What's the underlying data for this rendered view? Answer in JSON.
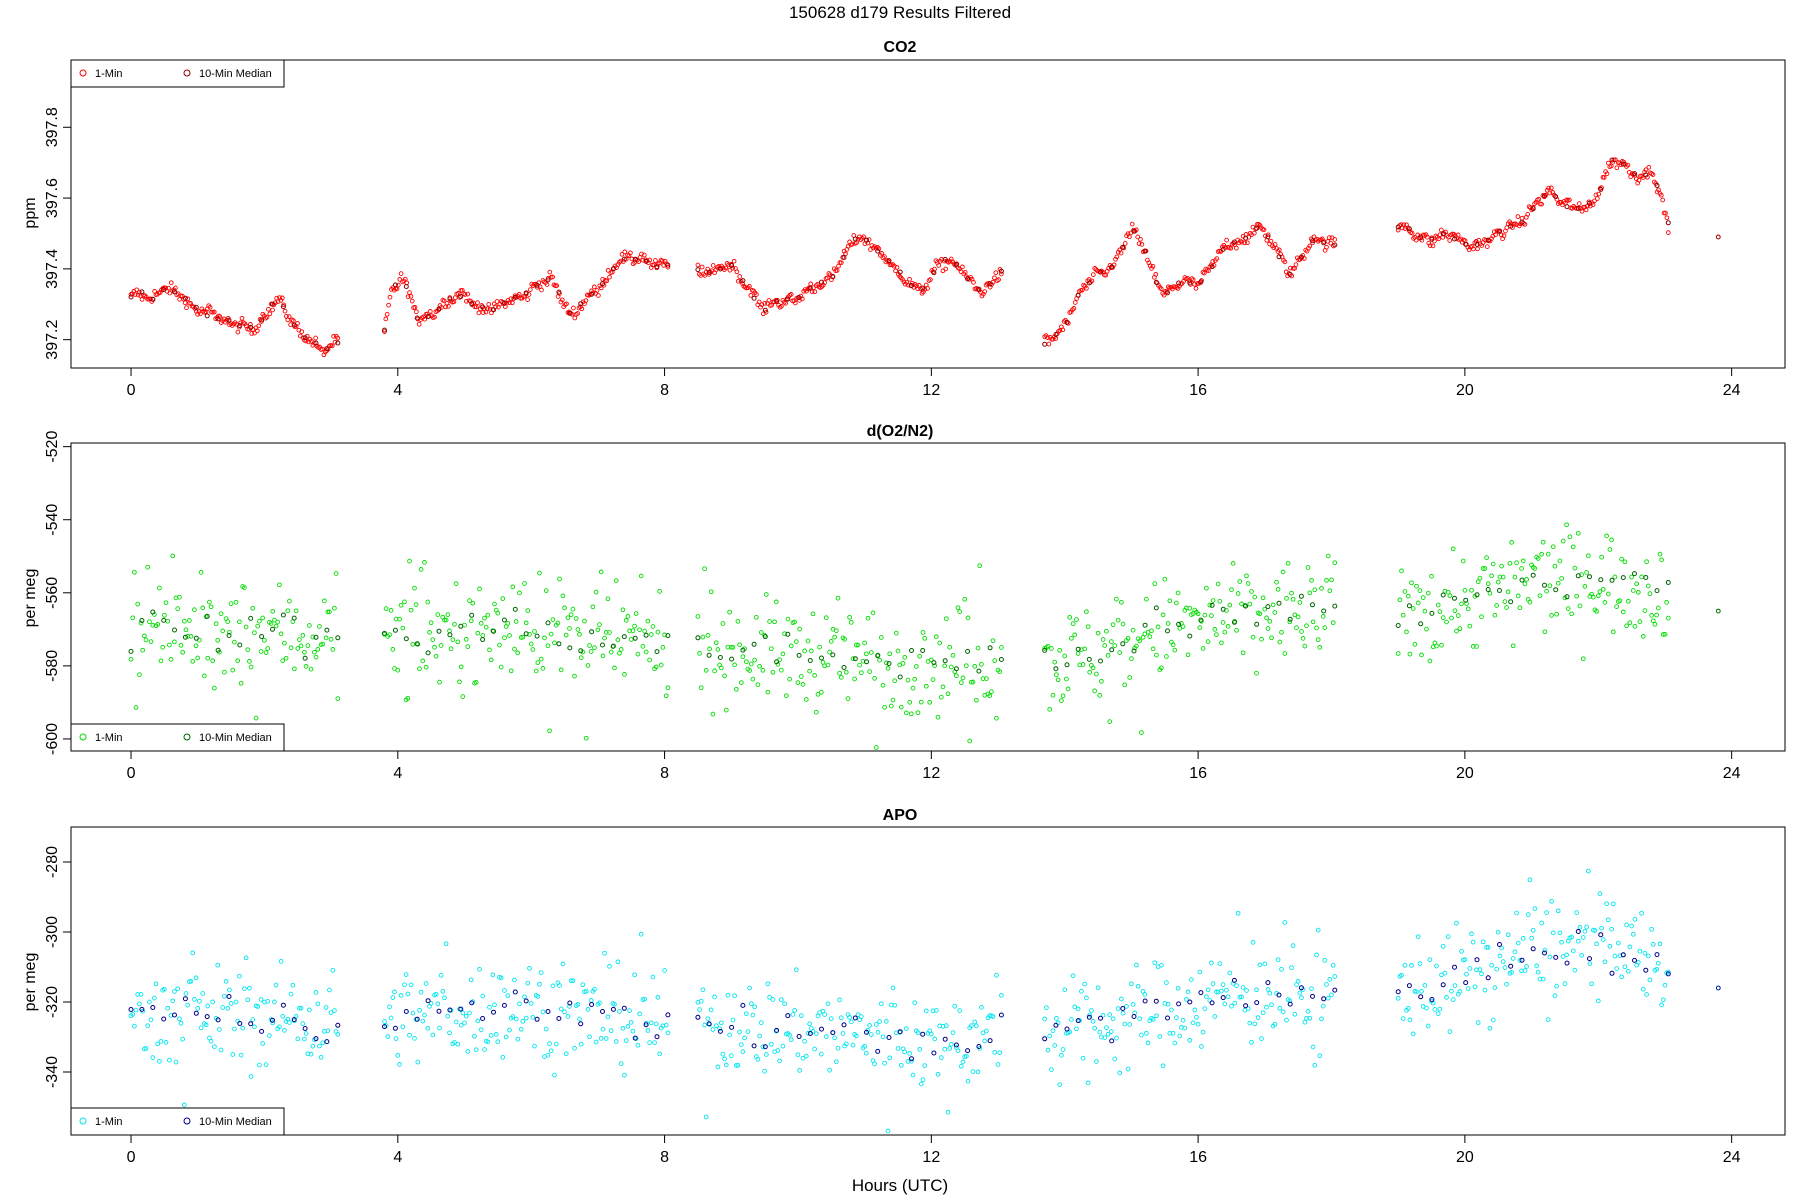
{
  "figure": {
    "title": "150628   d179   Results Filtered"
  },
  "chart_data": [
    {
      "type": "scatter",
      "title": "CO2",
      "xlabel": "",
      "ylabel": "ppm",
      "xlim": [
        -0.9,
        24.8
      ],
      "ylim": [
        397.12,
        397.99
      ],
      "xticks": [
        0,
        4,
        8,
        12,
        16,
        20,
        24
      ],
      "yticks": [
        397.2,
        397.4,
        397.6,
        397.8
      ],
      "ytick_labels": [
        "397.2",
        "397.4",
        "397.6",
        "397.8"
      ],
      "legend": {
        "placement": "top-left",
        "entries": [
          "1-Min",
          "10-Min Median"
        ]
      },
      "colors": {
        "one_min": "#ff0000",
        "median": "#8b0000"
      },
      "series": [
        {
          "name": "1-Min",
          "segments": [
            [
              0.0,
              3.1
            ],
            [
              3.8,
              8.05
            ],
            [
              8.5,
              13.05
            ],
            [
              13.7,
              18.05
            ],
            [
              19.0,
              23.05
            ],
            [
              23.8,
              23.82
            ]
          ],
          "kind": "wavy",
          "noise": 0.008,
          "anchors": [
            [
              0.0,
              397.32
            ],
            [
              0.3,
              397.31
            ],
            [
              0.5,
              397.36
            ],
            [
              0.7,
              397.33
            ],
            [
              0.9,
              397.28
            ],
            [
              1.2,
              397.29
            ],
            [
              1.5,
              397.23
            ],
            [
              1.8,
              397.24
            ],
            [
              2.0,
              397.27
            ],
            [
              2.2,
              397.3
            ],
            [
              2.5,
              397.24
            ],
            [
              2.7,
              397.2
            ],
            [
              2.85,
              397.15
            ],
            [
              3.1,
              397.2
            ],
            [
              3.8,
              397.23
            ],
            [
              3.9,
              397.34
            ],
            [
              4.05,
              397.38
            ],
            [
              4.3,
              397.25
            ],
            [
              4.6,
              397.3
            ],
            [
              5.0,
              397.32
            ],
            [
              5.5,
              397.28
            ],
            [
              6.0,
              397.35
            ],
            [
              6.3,
              397.36
            ],
            [
              6.6,
              397.28
            ],
            [
              7.0,
              397.33
            ],
            [
              7.3,
              397.44
            ],
            [
              7.5,
              397.42
            ],
            [
              8.05,
              397.42
            ],
            [
              8.5,
              397.4
            ],
            [
              9.0,
              397.4
            ],
            [
              9.3,
              397.35
            ],
            [
              9.5,
              397.28
            ],
            [
              10.0,
              397.33
            ],
            [
              10.4,
              397.35
            ],
            [
              10.8,
              397.48
            ],
            [
              11.2,
              397.46
            ],
            [
              11.4,
              397.42
            ],
            [
              11.6,
              397.36
            ],
            [
              11.8,
              397.33
            ],
            [
              12.1,
              397.42
            ],
            [
              12.4,
              397.4
            ],
            [
              12.8,
              397.34
            ],
            [
              13.05,
              397.38
            ],
            [
              13.7,
              397.18
            ],
            [
              13.9,
              397.22
            ],
            [
              14.2,
              397.32
            ],
            [
              14.5,
              397.38
            ],
            [
              14.8,
              397.44
            ],
            [
              15.0,
              397.5
            ],
            [
              15.2,
              397.45
            ],
            [
              15.5,
              397.33
            ],
            [
              16.0,
              397.37
            ],
            [
              16.5,
              397.47
            ],
            [
              16.9,
              397.52
            ],
            [
              17.2,
              397.44
            ],
            [
              17.4,
              397.4
            ],
            [
              17.7,
              397.47
            ],
            [
              18.05,
              397.48
            ],
            [
              19.0,
              397.51
            ],
            [
              19.5,
              397.49
            ],
            [
              20.0,
              397.48
            ],
            [
              20.4,
              397.47
            ],
            [
              20.7,
              397.53
            ],
            [
              21.0,
              397.56
            ],
            [
              21.3,
              397.62
            ],
            [
              21.6,
              397.58
            ],
            [
              21.8,
              397.55
            ],
            [
              22.0,
              397.62
            ],
            [
              22.2,
              397.72
            ],
            [
              22.4,
              397.68
            ],
            [
              22.6,
              397.65
            ],
            [
              22.8,
              397.7
            ],
            [
              23.05,
              397.52
            ],
            [
              23.8,
              397.49
            ]
          ]
        },
        {
          "name": "10-Min Median",
          "segments": [
            [
              0.0,
              3.1
            ],
            [
              3.8,
              8.05
            ],
            [
              8.5,
              13.05
            ],
            [
              13.7,
              18.05
            ],
            [
              19.0,
              23.05
            ]
          ],
          "kind": "median",
          "noise": 0.004,
          "anchors": []
        }
      ]
    },
    {
      "type": "scatter",
      "title": "d(O2/N2)",
      "xlabel": "",
      "ylabel": "per meg",
      "xlim": [
        -0.9,
        24.8
      ],
      "ylim": [
        -603.3,
        -519
      ],
      "xticks": [
        0,
        4,
        8,
        12,
        16,
        20,
        24
      ],
      "yticks": [
        -600,
        -580,
        -560,
        -540,
        -520
      ],
      "ytick_labels": [
        "-600",
        "-580",
        "-560",
        "-540",
        "-520"
      ],
      "legend": {
        "placement": "bottom-left",
        "entries": [
          "1-Min",
          "10-Min Median"
        ]
      },
      "colors": {
        "one_min": "#00dd00",
        "median": "#006400"
      },
      "series": [
        {
          "name": "1-Min",
          "segments": [
            [
              0.0,
              3.1
            ],
            [
              3.8,
              8.05
            ],
            [
              8.5,
              13.05
            ],
            [
              13.7,
              18.05
            ],
            [
              19.0,
              23.05
            ],
            [
              23.8,
              23.82
            ]
          ],
          "kind": "scatter",
          "noise": 7,
          "anchors": [
            [
              0.0,
              -570
            ],
            [
              1.0,
              -571
            ],
            [
              2.0,
              -571
            ],
            [
              3.1,
              -572
            ],
            [
              3.8,
              -572
            ],
            [
              5.0,
              -571
            ],
            [
              6.0,
              -569
            ],
            [
              7.0,
              -573
            ],
            [
              8.05,
              -574
            ],
            [
              8.5,
              -575
            ],
            [
              10.0,
              -577
            ],
            [
              11.0,
              -578
            ],
            [
              12.0,
              -579
            ],
            [
              13.05,
              -578
            ],
            [
              13.7,
              -580
            ],
            [
              14.5,
              -575
            ],
            [
              15.5,
              -570
            ],
            [
              16.5,
              -567
            ],
            [
              17.5,
              -565
            ],
            [
              18.05,
              -565
            ],
            [
              19.0,
              -566
            ],
            [
              20.0,
              -562
            ],
            [
              21.0,
              -557
            ],
            [
              22.0,
              -556
            ],
            [
              23.05,
              -560
            ],
            [
              23.8,
              -565
            ]
          ]
        },
        {
          "name": "10-Min Median",
          "segments": [
            [
              0.0,
              3.1
            ],
            [
              3.8,
              8.05
            ],
            [
              8.5,
              13.05
            ],
            [
              13.7,
              18.05
            ],
            [
              19.0,
              23.05
            ]
          ],
          "kind": "median",
          "noise": 3,
          "anchors": []
        }
      ]
    },
    {
      "type": "scatter",
      "title": "APO",
      "xlabel": "Hours (UTC)",
      "ylabel": "per meg",
      "xlim": [
        -0.9,
        24.8
      ],
      "ylim": [
        -358,
        -270
      ],
      "xticks": [
        0,
        4,
        8,
        12,
        16,
        20,
        24
      ],
      "yticks": [
        -340,
        -320,
        -300,
        -280
      ],
      "ytick_labels": [
        "-340",
        "-320",
        "-300",
        "-280"
      ],
      "legend": {
        "placement": "bottom-left",
        "entries": [
          "1-Min",
          "10-Min Median"
        ]
      },
      "colors": {
        "one_min": "#00e5ee",
        "median": "#00008b"
      },
      "series": [
        {
          "name": "1-Min",
          "segments": [
            [
              0.0,
              3.1
            ],
            [
              3.8,
              8.05
            ],
            [
              8.5,
              13.05
            ],
            [
              13.7,
              18.05
            ],
            [
              19.0,
              23.05
            ],
            [
              23.8,
              23.82
            ]
          ],
          "kind": "scatter",
          "noise": 7,
          "anchors": [
            [
              0.0,
              -323
            ],
            [
              1.0,
              -324
            ],
            [
              2.0,
              -324
            ],
            [
              3.1,
              -325
            ],
            [
              3.8,
              -325
            ],
            [
              5.0,
              -323
            ],
            [
              6.0,
              -321
            ],
            [
              7.0,
              -325
            ],
            [
              8.05,
              -326
            ],
            [
              8.5,
              -326
            ],
            [
              10.0,
              -328
            ],
            [
              11.0,
              -330
            ],
            [
              12.0,
              -331
            ],
            [
              13.05,
              -330
            ],
            [
              13.7,
              -330
            ],
            [
              14.5,
              -326
            ],
            [
              15.5,
              -322
            ],
            [
              16.5,
              -318
            ],
            [
              17.5,
              -319
            ],
            [
              18.05,
              -318
            ],
            [
              19.0,
              -316
            ],
            [
              20.0,
              -313
            ],
            [
              21.0,
              -305
            ],
            [
              22.0,
              -304
            ],
            [
              23.05,
              -310
            ],
            [
              23.8,
              -316
            ]
          ]
        },
        {
          "name": "10-Min Median",
          "segments": [
            [
              0.0,
              3.1
            ],
            [
              3.8,
              8.05
            ],
            [
              8.5,
              13.05
            ],
            [
              13.7,
              18.05
            ],
            [
              19.0,
              23.05
            ]
          ],
          "kind": "median",
          "noise": 3,
          "anchors": []
        }
      ]
    }
  ]
}
